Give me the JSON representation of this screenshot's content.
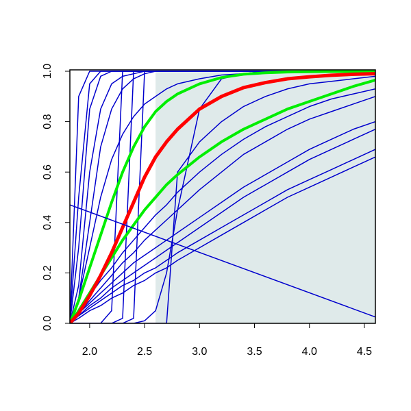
{
  "chart_data": {
    "type": "line",
    "xlim": [
      1.82,
      4.6
    ],
    "ylim": [
      0,
      1
    ],
    "xticks": [
      {
        "value": 2,
        "label": "2.0"
      },
      2.5,
      {
        "value": 3,
        "label": "3.0"
      },
      3.5,
      {
        "value": 4,
        "label": "4.0"
      },
      4.5
    ],
    "yticks": [
      {
        "value": 0,
        "label": "0.0"
      },
      0.2,
      0.4,
      0.6,
      0.8,
      {
        "value": 1,
        "label": "1.0"
      }
    ],
    "shade": {
      "x": [
        2.6,
        4.6
      ],
      "color": "#dfeaea"
    },
    "ref_line": {
      "x": [
        1.82,
        4.6
      ],
      "values": [
        0.47,
        0.025
      ],
      "color": "#0000cd"
    },
    "x": [
      1.82,
      1.9,
      2.0,
      2.1,
      2.2,
      2.3,
      2.4,
      2.5,
      2.6,
      2.7,
      2.8,
      3.0,
      3.2,
      3.4,
      3.6,
      3.8,
      4.0,
      4.2,
      4.4,
      4.6
    ],
    "series": [
      {
        "color": "#0000cd",
        "width": 1.5,
        "values": [
          0,
          0.9,
          1,
          1,
          1,
          1,
          1,
          1,
          1,
          1,
          1,
          1,
          1,
          1,
          1,
          1,
          1,
          1,
          1,
          1
        ]
      },
      {
        "color": "#0000cd",
        "width": 1.5,
        "values": [
          0,
          0.5,
          0.95,
          1,
          1,
          1,
          1,
          1,
          1,
          1,
          1,
          1,
          1,
          1,
          1,
          1,
          1,
          1,
          1,
          1
        ]
      },
      {
        "color": "#0000cd",
        "width": 1.5,
        "values": [
          0,
          0.3,
          0.85,
          0.98,
          1,
          1,
          1,
          1,
          1,
          1,
          1,
          1,
          1,
          1,
          1,
          1,
          1,
          1,
          1,
          1
        ]
      },
      {
        "color": "#0000cd",
        "width": 1.5,
        "values": [
          0,
          0.15,
          0.6,
          0.85,
          0.95,
          0.98,
          0.99,
          1,
          1,
          1,
          1,
          1,
          1,
          1,
          1,
          1,
          1,
          1,
          1,
          1
        ]
      },
      {
        "color": "#0000cd",
        "width": 1.5,
        "values": [
          0,
          0.1,
          0.4,
          0.7,
          0.85,
          0.93,
          0.97,
          0.99,
          1,
          1,
          1,
          1,
          1,
          1,
          1,
          1,
          1,
          1,
          1,
          1
        ]
      },
      {
        "color": "#0000cd",
        "width": 1.5,
        "values": [
          0,
          0.1,
          0.3,
          0.5,
          0.65,
          0.75,
          0.82,
          0.87,
          0.9,
          0.93,
          0.95,
          0.97,
          0.985,
          0.99,
          1,
          1,
          1,
          1,
          1,
          1
        ]
      },
      {
        "color": "#0000cd",
        "width": 1.5,
        "values": [
          0,
          0,
          0,
          0,
          0.05,
          1,
          1,
          1,
          1,
          1,
          1,
          1,
          1,
          1,
          1,
          1,
          1,
          1,
          1,
          1
        ]
      },
      {
        "color": "#0000cd",
        "width": 1.5,
        "values": [
          0,
          0,
          0,
          0,
          0,
          0.02,
          1,
          1,
          1,
          1,
          1,
          1,
          1,
          1,
          1,
          1,
          1,
          1,
          1,
          1
        ]
      },
      {
        "color": "#0000cd",
        "width": 1.5,
        "values": [
          0,
          0,
          0,
          0,
          0,
          0,
          0.02,
          1,
          1,
          1,
          1,
          1,
          1,
          1,
          1,
          1,
          1,
          1,
          1,
          1
        ]
      },
      {
        "color": "#0000cd",
        "width": 1.5,
        "values": [
          0,
          0,
          0,
          0,
          0,
          0,
          0,
          0,
          0,
          0,
          0.6,
          0.72,
          0.8,
          0.86,
          0.9,
          0.93,
          0.95,
          0.96,
          0.97,
          0.98
        ]
      },
      {
        "color": "#0000cd",
        "width": 1.5,
        "values": [
          0,
          0,
          0,
          0,
          0,
          0,
          0,
          0.01,
          0.05,
          0.2,
          0.45,
          0.85,
          0.97,
          0.99,
          1,
          1,
          1,
          1,
          1,
          1
        ]
      },
      {
        "color": "#0000cd",
        "width": 1.5,
        "values": [
          0,
          0.02,
          0.05,
          0.07,
          0.1,
          0.12,
          0.15,
          0.17,
          0.2,
          0.22,
          0.25,
          0.3,
          0.35,
          0.4,
          0.45,
          0.5,
          0.54,
          0.58,
          0.62,
          0.66
        ]
      },
      {
        "color": "#0000cd",
        "width": 1.5,
        "values": [
          0,
          0.03,
          0.06,
          0.09,
          0.12,
          0.15,
          0.17,
          0.2,
          0.22,
          0.25,
          0.28,
          0.33,
          0.38,
          0.43,
          0.48,
          0.53,
          0.57,
          0.61,
          0.65,
          0.69
        ]
      },
      {
        "color": "#0000cd",
        "width": 1.5,
        "values": [
          0,
          0.03,
          0.07,
          0.1,
          0.14,
          0.17,
          0.2,
          0.23,
          0.26,
          0.29,
          0.32,
          0.38,
          0.44,
          0.5,
          0.55,
          0.6,
          0.65,
          0.69,
          0.73,
          0.77
        ]
      },
      {
        "color": "#0000cd",
        "width": 1.5,
        "values": [
          0,
          0.04,
          0.08,
          0.12,
          0.16,
          0.2,
          0.24,
          0.27,
          0.3,
          0.33,
          0.36,
          0.42,
          0.48,
          0.54,
          0.59,
          0.64,
          0.69,
          0.73,
          0.77,
          0.8
        ]
      },
      {
        "color": "#0000cd",
        "width": 1.5,
        "values": [
          0,
          0.04,
          0.09,
          0.14,
          0.19,
          0.24,
          0.28,
          0.33,
          0.37,
          0.41,
          0.45,
          0.53,
          0.6,
          0.67,
          0.72,
          0.77,
          0.81,
          0.84,
          0.87,
          0.9
        ]
      },
      {
        "color": "#0000cd",
        "width": 1.5,
        "values": [
          0,
          0.05,
          0.11,
          0.17,
          0.22,
          0.28,
          0.33,
          0.38,
          0.43,
          0.47,
          0.52,
          0.6,
          0.67,
          0.73,
          0.78,
          0.82,
          0.86,
          0.89,
          0.91,
          0.93
        ]
      },
      {
        "color": "#00ee00",
        "width": 4,
        "values": [
          0,
          0.09,
          0.22,
          0.35,
          0.48,
          0.6,
          0.7,
          0.78,
          0.84,
          0.88,
          0.91,
          0.95,
          0.975,
          0.988,
          0.994,
          0.997,
          0.998,
          0.999,
          0.999,
          1
        ]
      },
      {
        "color": "#00ee00",
        "width": 4,
        "values": [
          0,
          0.05,
          0.12,
          0.19,
          0.26,
          0.33,
          0.39,
          0.45,
          0.5,
          0.55,
          0.59,
          0.66,
          0.72,
          0.77,
          0.81,
          0.85,
          0.88,
          0.91,
          0.94,
          0.965
        ]
      },
      {
        "color": "#ff0000",
        "width": 5,
        "values": [
          0,
          0.04,
          0.11,
          0.19,
          0.28,
          0.38,
          0.48,
          0.58,
          0.66,
          0.72,
          0.77,
          0.85,
          0.9,
          0.935,
          0.955,
          0.97,
          0.978,
          0.984,
          0.988,
          0.99
        ]
      }
    ]
  }
}
